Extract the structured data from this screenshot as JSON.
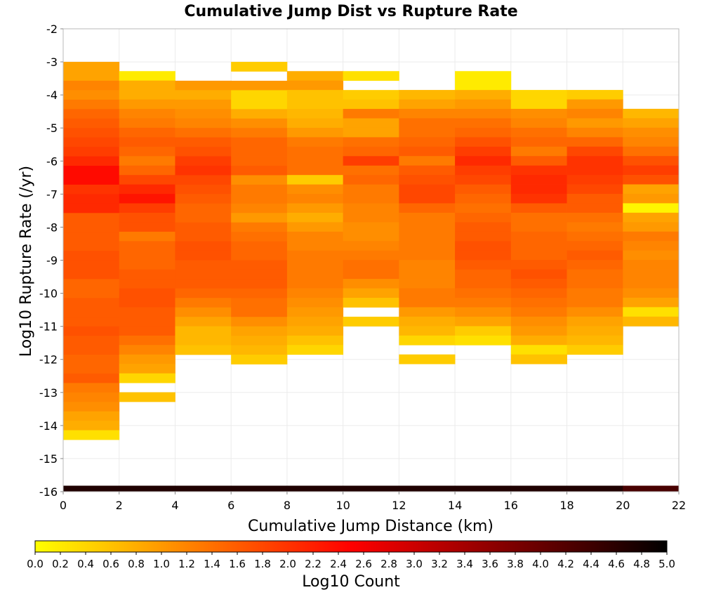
{
  "chart_data": {
    "type": "heatmap",
    "title": "Cumulative Jump Dist vs Rupture Rate",
    "xlabel": "Cumulative Jump Distance (km)",
    "ylabel": "Log10 Rupture Rate (/yr)",
    "xlim": [
      0,
      22
    ],
    "ylim": [
      -16,
      -2
    ],
    "x_ticks": [
      0,
      2,
      4,
      6,
      8,
      10,
      12,
      14,
      16,
      18,
      20,
      22
    ],
    "y_ticks": [
      -2,
      -3,
      -4,
      -5,
      -6,
      -7,
      -8,
      -9,
      -10,
      -11,
      -12,
      -13,
      -14,
      -15,
      -16
    ],
    "grid": true,
    "x_bin_edges": [
      0,
      2,
      4,
      6,
      8,
      10,
      12,
      14,
      16,
      18,
      20,
      22
    ],
    "y_bin_size": 0.2857,
    "colorbar": {
      "label": "Log10 Count",
      "range": [
        0,
        5
      ],
      "ticks": [
        "0.0",
        "0.2",
        "0.4",
        "0.6",
        "0.8",
        "1.0",
        "1.2",
        "1.4",
        "1.6",
        "1.8",
        "2.0",
        "2.2",
        "2.4",
        "2.6",
        "2.8",
        "3.0",
        "3.2",
        "3.4",
        "3.6",
        "3.8",
        "4.0",
        "4.2",
        "4.4",
        "4.6",
        "4.8",
        "5.0"
      ],
      "colors": [
        "#ffff00",
        "#ff7f00",
        "#ff0000",
        "#800000",
        "#000000"
      ],
      "placement": "bottom"
    },
    "columns": [
      {
        "x_start": 0,
        "y_start": -3.0,
        "values": [
          0.9,
          0.9,
          1.2,
          1.1,
          1.3,
          1.5,
          1.6,
          1.7,
          1.8,
          1.9,
          2.1,
          2.4,
          2.4,
          2.0,
          2.1,
          2.1,
          1.6,
          1.6,
          1.6,
          1.6,
          1.7,
          1.7,
          1.7,
          1.5,
          1.5,
          1.6,
          1.6,
          1.6,
          1.7,
          1.6,
          1.6,
          1.5,
          1.5,
          1.6,
          1.3,
          1.2,
          1.1,
          0.9,
          0.8,
          0.3
        ]
      },
      {
        "x_start": 2,
        "y_start": -3.28,
        "values": [
          0.2,
          0.8,
          0.8,
          1.0,
          1.2,
          1.3,
          1.5,
          1.6,
          1.5,
          1.3,
          1.5,
          1.8,
          2.1,
          2.3,
          1.9,
          1.7,
          1.7,
          1.3,
          1.5,
          1.5,
          1.5,
          1.6,
          1.6,
          1.7,
          1.7,
          1.6,
          1.6,
          1.6,
          1.4,
          1.2,
          1.0,
          0.9,
          0.4,
          null,
          0.6
        ]
      },
      {
        "x_start": 4,
        "y_start": -3.57,
        "values": [
          1.0,
          0.8,
          1.0,
          1.1,
          1.2,
          1.4,
          1.6,
          1.7,
          1.9,
          2.0,
          1.8,
          1.7,
          1.6,
          1.5,
          1.5,
          1.6,
          1.6,
          1.7,
          1.7,
          1.6,
          1.6,
          1.6,
          1.5,
          1.3,
          1.1,
          0.9,
          0.7,
          0.7,
          0.6
        ]
      },
      {
        "x_start": 6,
        "y_start": -3.0,
        "values": [
          0.5,
          null,
          1.0,
          0.4,
          0.4,
          0.8,
          1.1,
          1.3,
          1.5,
          1.5,
          1.5,
          1.6,
          1.1,
          1.3,
          1.3,
          1.2,
          1.0,
          1.3,
          1.4,
          1.5,
          1.5,
          1.6,
          1.6,
          1.6,
          1.5,
          1.4,
          1.4,
          1.1,
          0.9,
          0.8,
          0.7,
          0.5
        ]
      },
      {
        "x_start": 8,
        "y_start": -3.28,
        "values": [
          0.8,
          1.0,
          0.6,
          0.6,
          0.7,
          0.8,
          1.0,
          1.3,
          1.4,
          1.4,
          1.4,
          0.5,
          1.1,
          1.2,
          1.0,
          0.8,
          1.0,
          1.2,
          1.2,
          1.3,
          1.3,
          1.3,
          1.3,
          1.2,
          1.1,
          1.0,
          0.9,
          0.8,
          0.6,
          0.4
        ]
      },
      {
        "x_start": 10,
        "y_start": -3.28,
        "values": [
          0.3,
          null,
          0.5,
          0.6,
          1.3,
          0.9,
          0.9,
          1.4,
          1.5,
          1.9,
          1.4,
          1.5,
          1.3,
          1.3,
          1.2,
          1.2,
          1.1,
          1.1,
          1.2,
          1.3,
          1.4,
          1.4,
          1.1,
          0.9,
          0.6,
          null,
          0.5
        ]
      },
      {
        "x_start": 12,
        "y_start": -3.85,
        "values": [
          0.7,
          0.9,
          1.2,
          1.4,
          1.4,
          1.5,
          1.6,
          1.3,
          1.6,
          1.7,
          1.8,
          1.8,
          1.5,
          1.3,
          1.3,
          1.3,
          1.3,
          1.3,
          1.2,
          1.2,
          1.2,
          1.3,
          1.3,
          1.0,
          0.8,
          0.7,
          0.4,
          null,
          0.5
        ]
      },
      {
        "x_start": 14,
        "y_start": -3.28,
        "values": [
          0.2,
          0.2,
          0.8,
          1.0,
          1.2,
          1.4,
          1.5,
          1.7,
          1.9,
          2.1,
          1.9,
          1.8,
          1.6,
          1.5,
          1.4,
          1.5,
          1.6,
          1.6,
          1.7,
          1.7,
          1.6,
          1.5,
          1.5,
          1.4,
          1.3,
          1.1,
          0.9,
          0.5,
          0.3
        ]
      },
      {
        "x_start": 16,
        "y_start": -3.85,
        "values": [
          0.4,
          0.4,
          1.1,
          1.2,
          1.4,
          1.5,
          1.3,
          1.6,
          2.0,
          2.1,
          2.1,
          2.0,
          1.6,
          1.4,
          1.4,
          1.5,
          1.5,
          1.5,
          1.6,
          1.7,
          1.6,
          1.5,
          1.4,
          1.3,
          1.1,
          1.0,
          0.8,
          0.3,
          0.6
        ]
      },
      {
        "x_start": 18,
        "y_start": -3.85,
        "values": [
          0.5,
          1.0,
          1.2,
          1.0,
          1.2,
          1.5,
          1.8,
          2.0,
          2.0,
          1.9,
          1.8,
          1.6,
          1.6,
          1.4,
          1.3,
          1.4,
          1.5,
          1.6,
          1.5,
          1.4,
          1.4,
          1.3,
          1.3,
          1.1,
          0.9,
          0.8,
          0.7,
          0.5
        ]
      },
      {
        "x_start": 20,
        "y_start": -4.42,
        "values": [
          0.7,
          0.9,
          1.1,
          1.2,
          1.4,
          1.7,
          1.9,
          1.7,
          0.9,
          1.0,
          0.1,
          0.9,
          1.0,
          1.3,
          1.2,
          1.1,
          1.2,
          1.2,
          1.2,
          1.1,
          0.9,
          0.3,
          0.7
        ]
      }
    ],
    "baseline_row": {
      "y_start": -16.0,
      "y_end": -15.82,
      "values": [
        4.7,
        4.7,
        4.7,
        4.7,
        4.7,
        4.7,
        4.7,
        4.7,
        4.7,
        4.7,
        4.3
      ]
    }
  }
}
